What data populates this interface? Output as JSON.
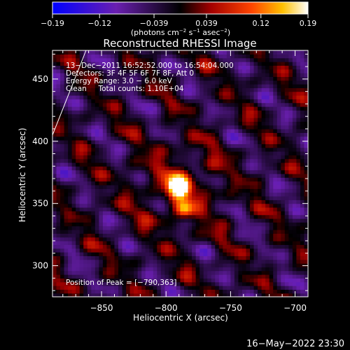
{
  "chart_data": {
    "type": "heatmap",
    "title": "Reconstructed RHESSI Image",
    "xlabel": "Heliocentric X (arcsec)",
    "ylabel": "Heliocentric Y (arcsec)",
    "xlim": [
      -888,
      -690
    ],
    "ylim": [
      275,
      473
    ],
    "x_ticks": [
      -850,
      -800,
      -750,
      -700
    ],
    "x_tick_labels": [
      "−850",
      "−800",
      "−750",
      "−700"
    ],
    "y_ticks": [
      300,
      350,
      400,
      450
    ],
    "y_tick_labels": [
      "300",
      "350",
      "400",
      "450"
    ],
    "colorbar": {
      "min": -0.19,
      "max": 0.19,
      "ticks": [
        -0.19,
        -0.12,
        -0.039,
        0.039,
        0.12,
        0.19
      ],
      "tick_labels": [
        "−0.19",
        "−0.12",
        "−0.039",
        "0.039",
        "0.12",
        "0.19"
      ],
      "units_base": "(photons cm",
      "units_exp1": "−2",
      "units_mid1": " s",
      "units_exp2": "−1",
      "units_mid2": " asec",
      "units_exp3": "−2",
      "units_end": ")"
    },
    "annotations": [
      "13−Dec−2011 16:52:52.000 to 16:54:04.000",
      "Detectors: 3F 4F 5F 6F 7F 8F, Att 0",
      "Energy Range: 3.0 − 6.0 keV",
      "Clean     Total counts: 1.10E+04"
    ],
    "peak_label": "Position of Peak = [−790,363]",
    "peak": {
      "x": -790,
      "y": 363,
      "value": 0.19
    },
    "secondary_peak": {
      "x": -786,
      "y": 345,
      "value": 0.12
    },
    "stripe_angle_deg": 40,
    "limb_line": [
      [
        -888,
        405
      ],
      [
        -862,
        473
      ]
    ],
    "timestamp": "16−May−2022 23:30"
  }
}
